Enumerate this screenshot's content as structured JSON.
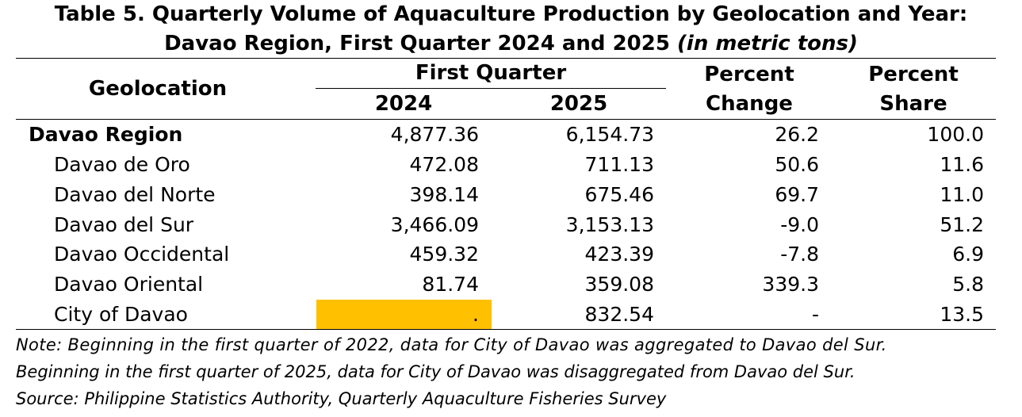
{
  "title": {
    "line1": "Table 5. Quarterly Volume of Aquaculture Production by Geolocation and Year:",
    "line2": "Davao Region, First Quarter 2024 and 2025",
    "unit": "(in metric tons)"
  },
  "header": {
    "geolocation": "Geolocation",
    "first_quarter": "First Quarter",
    "year_2024": "2024",
    "year_2025": "2025",
    "percent_change_1": "Percent",
    "percent_change_2": "Change",
    "percent_share_1": "Percent",
    "percent_share_2": "Share"
  },
  "rows": [
    {
      "name": "Davao Region",
      "v2024": "4,877.36",
      "v2025": "6,154.73",
      "change": "26.2",
      "share": "100.0"
    },
    {
      "name": "Davao de Oro",
      "v2024": "472.08",
      "v2025": "711.13",
      "change": "50.6",
      "share": "11.6"
    },
    {
      "name": "Davao del Norte",
      "v2024": "398.14",
      "v2025": "675.46",
      "change": "69.7",
      "share": "11.0"
    },
    {
      "name": "Davao del Sur",
      "v2024": "3,466.09",
      "v2025": "3,153.13",
      "change": "-9.0",
      "share": "51.2"
    },
    {
      "name": "Davao Occidental",
      "v2024": "459.32",
      "v2025": "423.39",
      "change": "-7.8",
      "share": "6.9"
    },
    {
      "name": "Davao Oriental",
      "v2024": "81.74",
      "v2025": "359.08",
      "change": "339.3",
      "share": "5.8"
    },
    {
      "name": "City of Davao",
      "v2024": ".",
      "v2025": "832.54",
      "change": "-",
      "share": "13.5"
    }
  ],
  "highlight_color": "#ffc000",
  "notes": {
    "line1": "Note: Beginning in the first quarter of 2022, data for City of Davao was aggregated to Davao del Sur.",
    "line2": "Beginning in the first quarter of 2025, data for City of Davao was disaggregated from Davao del Sur.",
    "line3": "Source: Philippine Statistics Authority, Quarterly Aquaculture Fisheries Survey"
  }
}
